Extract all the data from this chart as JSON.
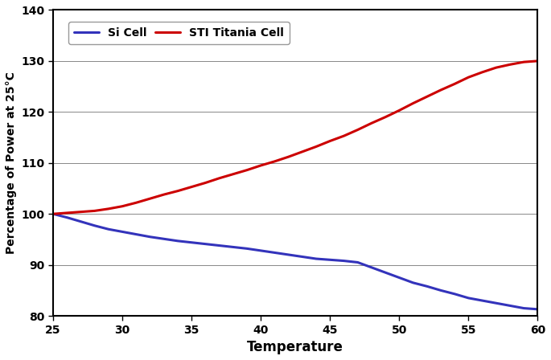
{
  "title": "",
  "xlabel": "Temperature",
  "ylabel": "Percentage of Power at 25°C",
  "xlim": [
    25,
    60
  ],
  "ylim": [
    80,
    140
  ],
  "yticks": [
    80,
    90,
    100,
    110,
    120,
    130,
    140
  ],
  "xticks": [
    25,
    30,
    35,
    40,
    45,
    50,
    55,
    60
  ],
  "si_cell_color": "#3333bb",
  "sti_cell_color": "#cc0000",
  "si_cell_label": "Si Cell",
  "sti_cell_label": "STI Titania Cell",
  "line_width": 2.2,
  "si_x": [
    25,
    26,
    27,
    28,
    29,
    30,
    31,
    32,
    33,
    34,
    35,
    36,
    37,
    38,
    39,
    40,
    41,
    42,
    43,
    44,
    45,
    46,
    47,
    48,
    49,
    50,
    51,
    52,
    53,
    54,
    55,
    56,
    57,
    58,
    59,
    60
  ],
  "si_y": [
    100,
    99.3,
    98.5,
    97.7,
    97.0,
    96.5,
    96.0,
    95.5,
    95.1,
    94.7,
    94.4,
    94.1,
    93.8,
    93.5,
    93.2,
    92.8,
    92.4,
    92.0,
    91.6,
    91.2,
    91.0,
    90.8,
    90.5,
    89.5,
    88.5,
    87.5,
    86.5,
    85.8,
    85.0,
    84.3,
    83.5,
    83.0,
    82.5,
    82.0,
    81.5,
    81.3
  ],
  "sti_x": [
    25,
    26,
    27,
    28,
    29,
    30,
    31,
    32,
    33,
    34,
    35,
    36,
    37,
    38,
    39,
    40,
    41,
    42,
    43,
    44,
    45,
    46,
    47,
    48,
    49,
    50,
    51,
    52,
    53,
    54,
    55,
    56,
    57,
    58,
    59,
    60
  ],
  "sti_y": [
    100,
    100.2,
    100.4,
    100.6,
    101.0,
    101.5,
    102.2,
    103.0,
    103.8,
    104.5,
    105.3,
    106.1,
    107.0,
    107.8,
    108.6,
    109.5,
    110.3,
    111.2,
    112.2,
    113.2,
    114.3,
    115.3,
    116.5,
    117.8,
    119.0,
    120.3,
    121.7,
    123.0,
    124.3,
    125.5,
    126.8,
    127.8,
    128.7,
    129.3,
    129.8,
    130.0
  ],
  "background_color": "#ffffff",
  "grid_color": "#888888",
  "figsize": [
    6.85,
    4.48
  ],
  "dpi": 100
}
